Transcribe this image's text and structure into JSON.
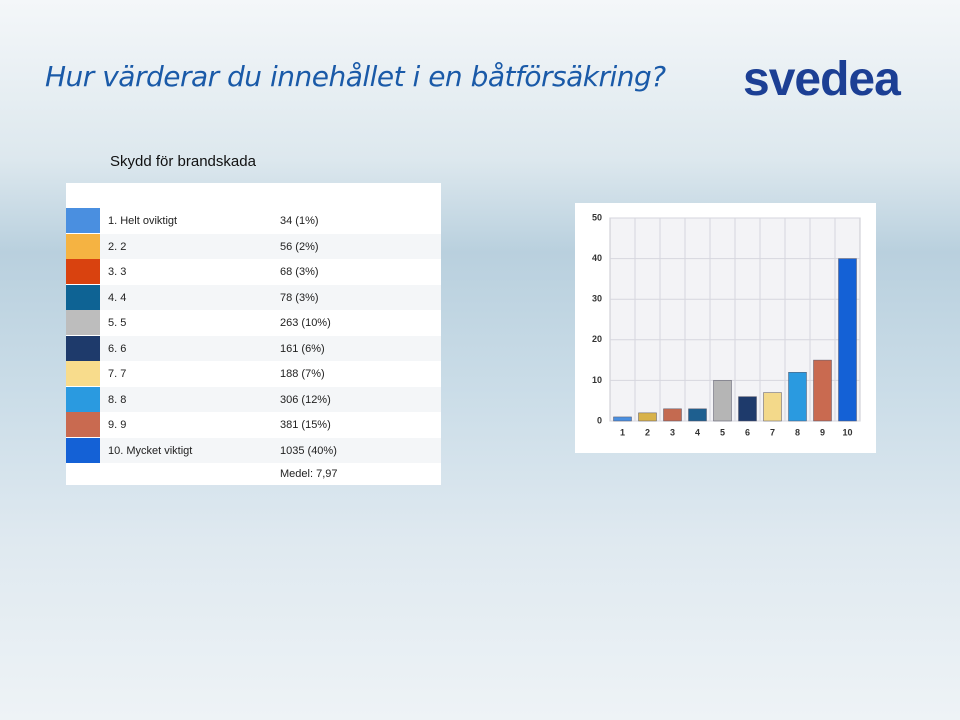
{
  "header": {
    "title": "Hur värderar du innehållet i en båtförsäkring?",
    "logo": "svedea"
  },
  "subtitle": "Skydd för brandskada",
  "table": {
    "rows": [
      {
        "label": "1. Helt oviktigt",
        "value": "34 (1%)",
        "color": "#4a8fe0"
      },
      {
        "label": "2. 2",
        "value": "56 (2%)",
        "color": "#f5b342"
      },
      {
        "label": "3. 3",
        "value": "68 (3%)",
        "color": "#d9420f"
      },
      {
        "label": "4. 4",
        "value": "78 (3%)",
        "color": "#0e6394"
      },
      {
        "label": "5. 5",
        "value": "263 (10%)",
        "color": "#bdbdbd"
      },
      {
        "label": "6. 6",
        "value": "161 (6%)",
        "color": "#1e3a6b"
      },
      {
        "label": "7. 7",
        "value": "188 (7%)",
        "color": "#f8dc8c"
      },
      {
        "label": "8. 8",
        "value": "306 (12%)",
        "color": "#2a9ae0"
      },
      {
        "label": "9. 9",
        "value": "381 (15%)",
        "color": "#c96a50"
      },
      {
        "label": "10. Mycket viktigt",
        "value": "1035 (40%)",
        "color": "#1461d6"
      }
    ],
    "footer": "Medel: 7,97"
  },
  "chart_data": {
    "type": "bar",
    "categories": [
      "1",
      "2",
      "3",
      "4",
      "5",
      "6",
      "7",
      "8",
      "9",
      "10"
    ],
    "values": [
      1,
      2,
      3,
      3,
      10,
      6,
      7,
      12,
      15,
      40
    ],
    "colors": [
      "#4a8fe0",
      "#d8b24a",
      "#c46a50",
      "#1e5f8f",
      "#b5b5b5",
      "#1e3a6b",
      "#f3d98a",
      "#2a9ae0",
      "#c96a50",
      "#1461d6"
    ],
    "ylim": [
      0,
      50
    ],
    "yticks": [
      0,
      10,
      20,
      30,
      40,
      50
    ],
    "grid": true
  }
}
